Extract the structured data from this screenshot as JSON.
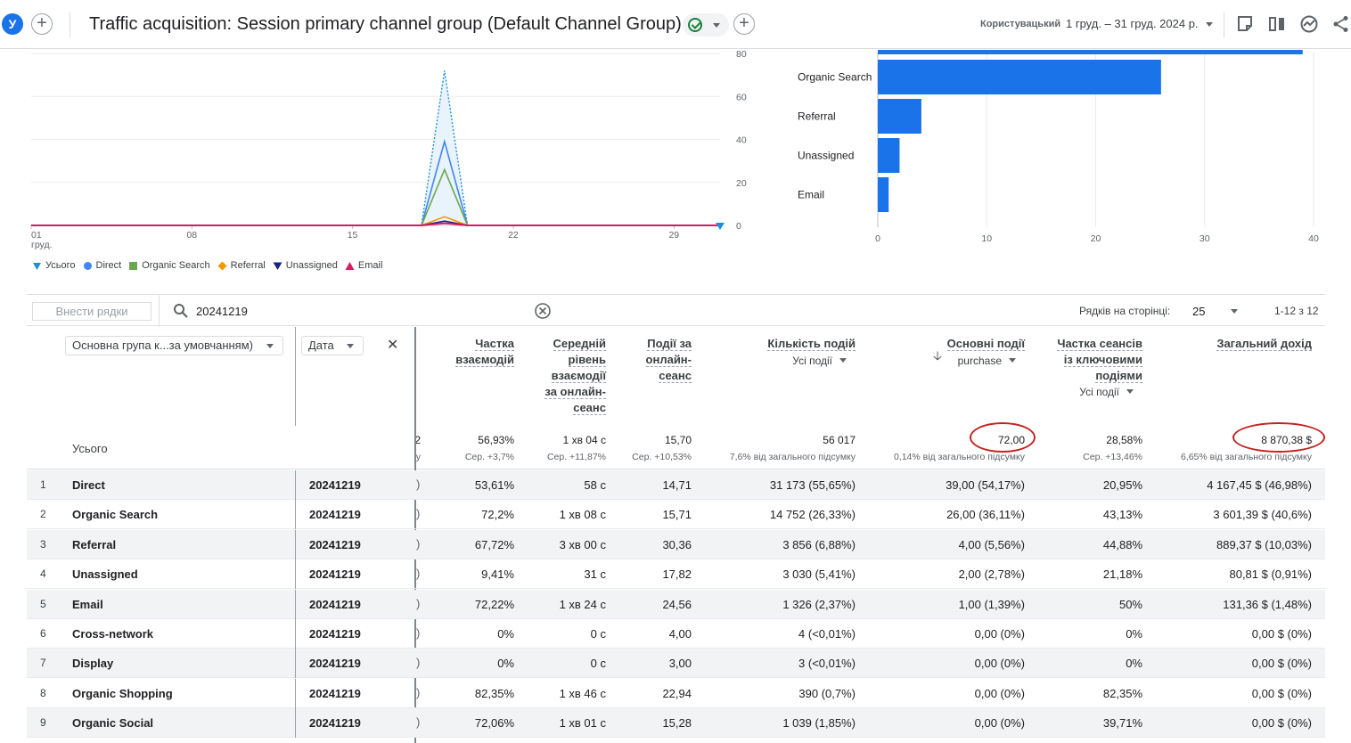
{
  "header": {
    "avatar_letter": "У",
    "title": "Traffic acquisition: Session primary channel group (Default Channel Group)",
    "date_label": "Користувацький",
    "date_range": "1 груд. – 31 груд. 2024 р.",
    "add_comparison_icon": "plus-icon",
    "status_icon": "check-circle-icon",
    "toolbar_icons": [
      "edit-icon",
      "compare-icon",
      "insights-icon",
      "share-icon"
    ]
  },
  "chart_data": [
    {
      "type": "line",
      "x_ticks": [
        {
          "label": "01",
          "sublabel": "груд."
        },
        {
          "label": "08"
        },
        {
          "label": "15"
        },
        {
          "label": "22"
        },
        {
          "label": "29"
        }
      ],
      "ylim": [
        0,
        80
      ],
      "y_ticks": [
        "80",
        "60",
        "40",
        "20",
        "0"
      ],
      "x": [
        1,
        2,
        3,
        4,
        5,
        6,
        7,
        8,
        9,
        10,
        11,
        12,
        13,
        14,
        15,
        16,
        17,
        18,
        19,
        20,
        21,
        22,
        23,
        24,
        25,
        26,
        27,
        28,
        29,
        30,
        31
      ],
      "series": [
        {
          "name": "Усього",
          "color": "#1e8fd6",
          "dotted": true,
          "values": [
            0,
            0,
            0,
            0,
            0,
            0,
            0,
            0,
            0,
            0,
            0,
            0,
            0,
            0,
            0,
            0,
            0,
            0,
            72,
            0,
            0,
            0,
            0,
            0,
            0,
            0,
            0,
            0,
            0,
            0,
            0
          ]
        },
        {
          "name": "Direct",
          "color": "#4285f4",
          "values": [
            0,
            0,
            0,
            0,
            0,
            0,
            0,
            0,
            0,
            0,
            0,
            0,
            0,
            0,
            0,
            0,
            0,
            0,
            39,
            0,
            0,
            0,
            0,
            0,
            0,
            0,
            0,
            0,
            0,
            0,
            0
          ]
        },
        {
          "name": "Organic Search",
          "color": "#6aa84f",
          "values": [
            0,
            0,
            0,
            0,
            0,
            0,
            0,
            0,
            0,
            0,
            0,
            0,
            0,
            0,
            0,
            0,
            0,
            0,
            26,
            0,
            0,
            0,
            0,
            0,
            0,
            0,
            0,
            0,
            0,
            0,
            0
          ]
        },
        {
          "name": "Referral",
          "color": "#f29900",
          "values": [
            0,
            0,
            0,
            0,
            0,
            0,
            0,
            0,
            0,
            0,
            0,
            0,
            0,
            0,
            0,
            0,
            0,
            0,
            4,
            0,
            0,
            0,
            0,
            0,
            0,
            0,
            0,
            0,
            0,
            0,
            0
          ]
        },
        {
          "name": "Unassigned",
          "color": "#1a237e",
          "values": [
            0,
            0,
            0,
            0,
            0,
            0,
            0,
            0,
            0,
            0,
            0,
            0,
            0,
            0,
            0,
            0,
            0,
            0,
            2,
            0,
            0,
            0,
            0,
            0,
            0,
            0,
            0,
            0,
            0,
            0,
            0
          ]
        },
        {
          "name": "Email",
          "color": "#d81b60",
          "values": [
            0,
            0,
            0,
            0,
            0,
            0,
            0,
            0,
            0,
            0,
            0,
            0,
            0,
            0,
            0,
            0,
            0,
            0,
            1,
            0,
            0,
            0,
            0,
            0,
            0,
            0,
            0,
            0,
            0,
            0,
            0
          ]
        }
      ]
    },
    {
      "type": "bar",
      "orientation": "horizontal",
      "categories": [
        "Direct",
        "Organic Search",
        "Referral",
        "Unassigned",
        "Email"
      ],
      "category_labels": [
        "",
        "Organic Search",
        "Referral",
        "Unassigned",
        "Email"
      ],
      "values": [
        39,
        26,
        4,
        2,
        1
      ],
      "xlim": [
        0,
        40
      ],
      "x_ticks": [
        "0",
        "10",
        "20",
        "30",
        "40"
      ],
      "color": "#1a73e8"
    }
  ],
  "legend": [
    {
      "label": "Усього",
      "color": "#1e8fd6",
      "shape": "drop"
    },
    {
      "label": "Direct",
      "color": "#4285f4",
      "shape": "circle"
    },
    {
      "label": "Organic Search",
      "color": "#6aa84f",
      "shape": "square"
    },
    {
      "label": "Referral",
      "color": "#f29900",
      "shape": "diamond"
    },
    {
      "label": "Unassigned",
      "color": "#1a237e",
      "shape": "triangle-down"
    },
    {
      "label": "Email",
      "color": "#d81b60",
      "shape": "triangle-up"
    }
  ],
  "toolbar": {
    "add_rows": "Внести рядки",
    "search_value": "20241219",
    "rows_per_page_label": "Рядків на сторінці:",
    "rows_per_page": "25",
    "range": "1-12 з 12"
  },
  "table": {
    "dim_primary": "Основна група к...за умовчанням)",
    "dim_secondary": "Дата",
    "total_label": "Усього",
    "partial_total": "2",
    "partial_total_sub": "у",
    "columns": [
      {
        "header_lines": [
          "Частка",
          "взаємодій"
        ],
        "total": "56,93%",
        "total_sub": "Сер. +3,7%"
      },
      {
        "header_lines": [
          "Середній",
          "рівень",
          "взаємодії",
          "за онлайн-",
          "сеанс"
        ],
        "total": "1 хв 04 с",
        "total_sub": "Сер. +11,87%"
      },
      {
        "header_lines": [
          "Події за",
          "онлайн-",
          "сеанс"
        ],
        "total": "15,70",
        "total_sub": "Сер. +10,53%"
      },
      {
        "header_lines": [
          "Кількість подій"
        ],
        "sub_select": "Усі події",
        "total": "56 017",
        "total_sub": "7,6% від загального підсумку"
      },
      {
        "header_lines": [
          "Основні події"
        ],
        "sub_select": "purchase",
        "total": "72,00",
        "total_sub": "0,14% від загального підсумку"
      },
      {
        "header_lines": [
          "Частка сеансів",
          "із ключовими",
          "подіями"
        ],
        "sub_select": "Усі події",
        "total": "28,58%",
        "total_sub": "Сер. +13,46%"
      },
      {
        "header_lines": [
          "Загальний дохід"
        ],
        "total": "8 870,38 $",
        "total_sub": "6,65% від загального підсумку"
      }
    ],
    "rows": [
      {
        "n": "1",
        "channel": "Direct",
        "date": "20241219",
        "cells": [
          "53,61%",
          "58 с",
          "14,71",
          "31 173 (55,65%)",
          "39,00 (54,17%)",
          "20,95%",
          "4 167,45 $ (46,98%)"
        ]
      },
      {
        "n": "2",
        "channel": "Organic Search",
        "date": "20241219",
        "cells": [
          "72,2%",
          "1 хв 08 с",
          "15,71",
          "14 752 (26,33%)",
          "26,00 (36,11%)",
          "43,13%",
          "3 601,39 $ (40,6%)"
        ]
      },
      {
        "n": "3",
        "channel": "Referral",
        "date": "20241219",
        "cells": [
          "67,72%",
          "3 хв 00 с",
          "30,36",
          "3 856 (6,88%)",
          "4,00 (5,56%)",
          "44,88%",
          "889,37 $ (10,03%)"
        ]
      },
      {
        "n": "4",
        "channel": "Unassigned",
        "date": "20241219",
        "cells": [
          "9,41%",
          "31 с",
          "17,82",
          "3 030 (5,41%)",
          "2,00 (2,78%)",
          "21,18%",
          "80,81 $ (0,91%)"
        ]
      },
      {
        "n": "5",
        "channel": "Email",
        "date": "20241219",
        "cells": [
          "72,22%",
          "1 хв 24 с",
          "24,56",
          "1 326 (2,37%)",
          "1,00 (1,39%)",
          "50%",
          "131,36 $ (1,48%)"
        ]
      },
      {
        "n": "6",
        "channel": "Cross-network",
        "date": "20241219",
        "cells": [
          "0%",
          "0 с",
          "4,00",
          "4 (<0,01%)",
          "0,00 (0%)",
          "0%",
          "0,00 $ (0%)"
        ]
      },
      {
        "n": "7",
        "channel": "Display",
        "date": "20241219",
        "cells": [
          "0%",
          "0 с",
          "3,00",
          "3 (<0,01%)",
          "0,00 (0%)",
          "0%",
          "0,00 $ (0%)"
        ]
      },
      {
        "n": "8",
        "channel": "Organic Shopping",
        "date": "20241219",
        "cells": [
          "82,35%",
          "1 хв 46 с",
          "22,94",
          "390 (0,7%)",
          "0,00 (0%)",
          "82,35%",
          "0,00 $ (0%)"
        ]
      },
      {
        "n": "9",
        "channel": "Organic Social",
        "date": "20241219",
        "cells": [
          "72,06%",
          "1 хв 01 с",
          "15,28",
          "1 039 (1,85%)",
          "0,00 (0%)",
          "39,71%",
          "0,00 $ (0%)"
        ]
      }
    ]
  }
}
